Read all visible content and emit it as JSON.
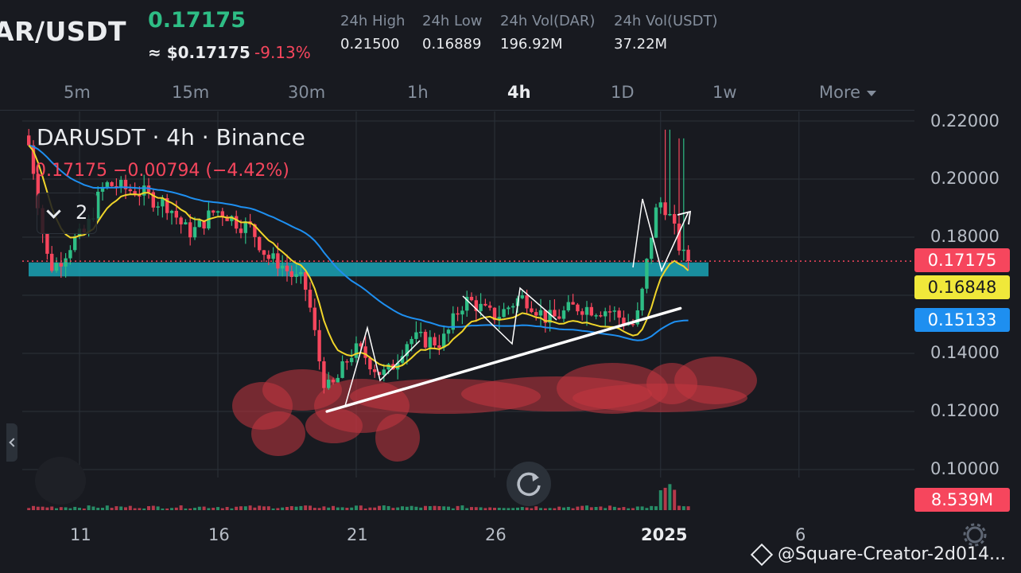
{
  "header": {
    "pair": "AR/USDT",
    "last_price": "0.17175",
    "approx_usd": "≈ $0.17175",
    "change_pct": "-9.13%",
    "stats": [
      {
        "label": "24h High",
        "value": "0.21500"
      },
      {
        "label": "24h Low",
        "value": "0.16889"
      },
      {
        "label": "24h Vol(DAR)",
        "value": "196.92M"
      },
      {
        "label": "24h Vol(USDT)",
        "value": "37.22M"
      }
    ]
  },
  "intervals": [
    "5m",
    "15m",
    "30m",
    "1h",
    "4h",
    "1D",
    "1w",
    "More"
  ],
  "active_interval": "4h",
  "legend": {
    "symbol_line": "DARUSDT · 4h · Binance",
    "change_line": "0.17175 −0.00794 (−4.42%)",
    "indicator_count": "2"
  },
  "badges": {
    "last_price": "0.17175",
    "ma_fast": "0.16848",
    "ma_slow": "0.15133",
    "volume": "8.539M"
  },
  "watermark": "@Square-Creator-2d014...",
  "colors": {
    "up": "#2ebd85",
    "down": "#f6465d",
    "ma_fast": "#f0d52a",
    "ma_slow": "#1e8ff0",
    "support_zone": "#1aa3b5",
    "annotation_blob": "#c2373f"
  },
  "chart_data": {
    "type": "candlestick",
    "interval": "4h",
    "y_ticks": [
      "0.22000",
      "0.20000",
      "0.18000",
      "0.14000",
      "0.12000",
      "0.10000"
    ],
    "ylim": [
      0.096,
      0.224
    ],
    "x_ticks": [
      "11",
      "16",
      "21",
      "26",
      "2025",
      "6"
    ],
    "x_tick_dates": [
      "2024-12-11",
      "2024-12-16",
      "2024-12-21",
      "2024-12-26",
      "2025-01-01",
      "2025-01-06"
    ],
    "close_path": [
      [
        "2024-12-09",
        0.215
      ],
      [
        "2024-12-10",
        0.17
      ],
      [
        "2024-12-11",
        0.18
      ],
      [
        "2024-12-12",
        0.198
      ],
      [
        "2024-12-13",
        0.196
      ],
      [
        "2024-12-14",
        0.192
      ],
      [
        "2024-12-15",
        0.182
      ],
      [
        "2024-12-16",
        0.189
      ],
      [
        "2024-12-17",
        0.184
      ],
      [
        "2024-12-18",
        0.172
      ],
      [
        "2024-12-19",
        0.165
      ],
      [
        "2024-12-20",
        0.128
      ],
      [
        "2024-12-21",
        0.141
      ],
      [
        "2024-12-22",
        0.133
      ],
      [
        "2024-12-23",
        0.145
      ],
      [
        "2024-12-24",
        0.144
      ],
      [
        "2024-12-25",
        0.158
      ],
      [
        "2024-12-26",
        0.153
      ],
      [
        "2024-12-27",
        0.159
      ],
      [
        "2024-12-28",
        0.152
      ],
      [
        "2024-12-29",
        0.156
      ],
      [
        "2024-12-30",
        0.155
      ],
      [
        "2024-12-31",
        0.15
      ],
      [
        "2025-01-01",
        0.192
      ],
      [
        "2025-01-02",
        0.17175
      ]
    ],
    "ma_fast_last": 0.16848,
    "ma_slow_last": 0.15133,
    "last_price": 0.17175,
    "support_zone": [
      0.1665,
      0.1713
    ],
    "trendline": [
      [
        "2024-12-20",
        0.12
      ],
      [
        "2025-01-02",
        0.1555
      ]
    ],
    "volume_last": "8.539M"
  }
}
